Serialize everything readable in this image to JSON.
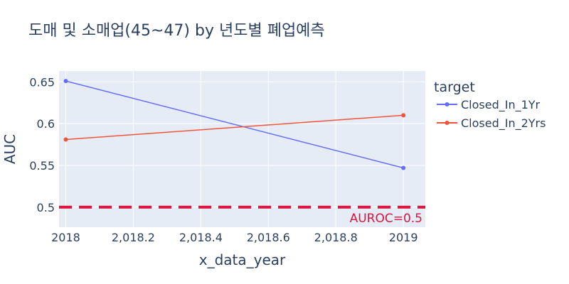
{
  "chart_data": {
    "type": "line",
    "title": "도매 및 소매업(45~47) by 년도별 폐업예측",
    "xlabel": "x_data_year",
    "ylabel": "AUC",
    "x": [
      2018,
      2019
    ],
    "xlim": [
      2017.98,
      2019.065
    ],
    "ylim": [
      0.476,
      0.663
    ],
    "x_ticks": [
      2018,
      2018.2,
      2018.4,
      2018.6,
      2018.8,
      2019
    ],
    "x_tick_labels": [
      "2018",
      "2,018.2",
      "2,018.4",
      "2,018.6",
      "2,018.8",
      "2019"
    ],
    "y_ticks": [
      0.5,
      0.55,
      0.6,
      0.65
    ],
    "y_tick_labels": [
      "0.5",
      "0.55",
      "0.6",
      "0.65"
    ],
    "legend": {
      "title": "target",
      "position": "right"
    },
    "series": [
      {
        "name": "Closed_In_1Yr",
        "color": "#636efa",
        "values": [
          0.651,
          0.547
        ]
      },
      {
        "name": "Closed_In_2Yrs",
        "color": "#ef553b",
        "values": [
          0.581,
          0.61
        ]
      }
    ],
    "reference_line": {
      "y": 0.5,
      "label": "AUROC=0.5",
      "color": "#dc143c",
      "style": "dashed"
    },
    "grid": true,
    "plot_background": "#e5ecf6"
  }
}
